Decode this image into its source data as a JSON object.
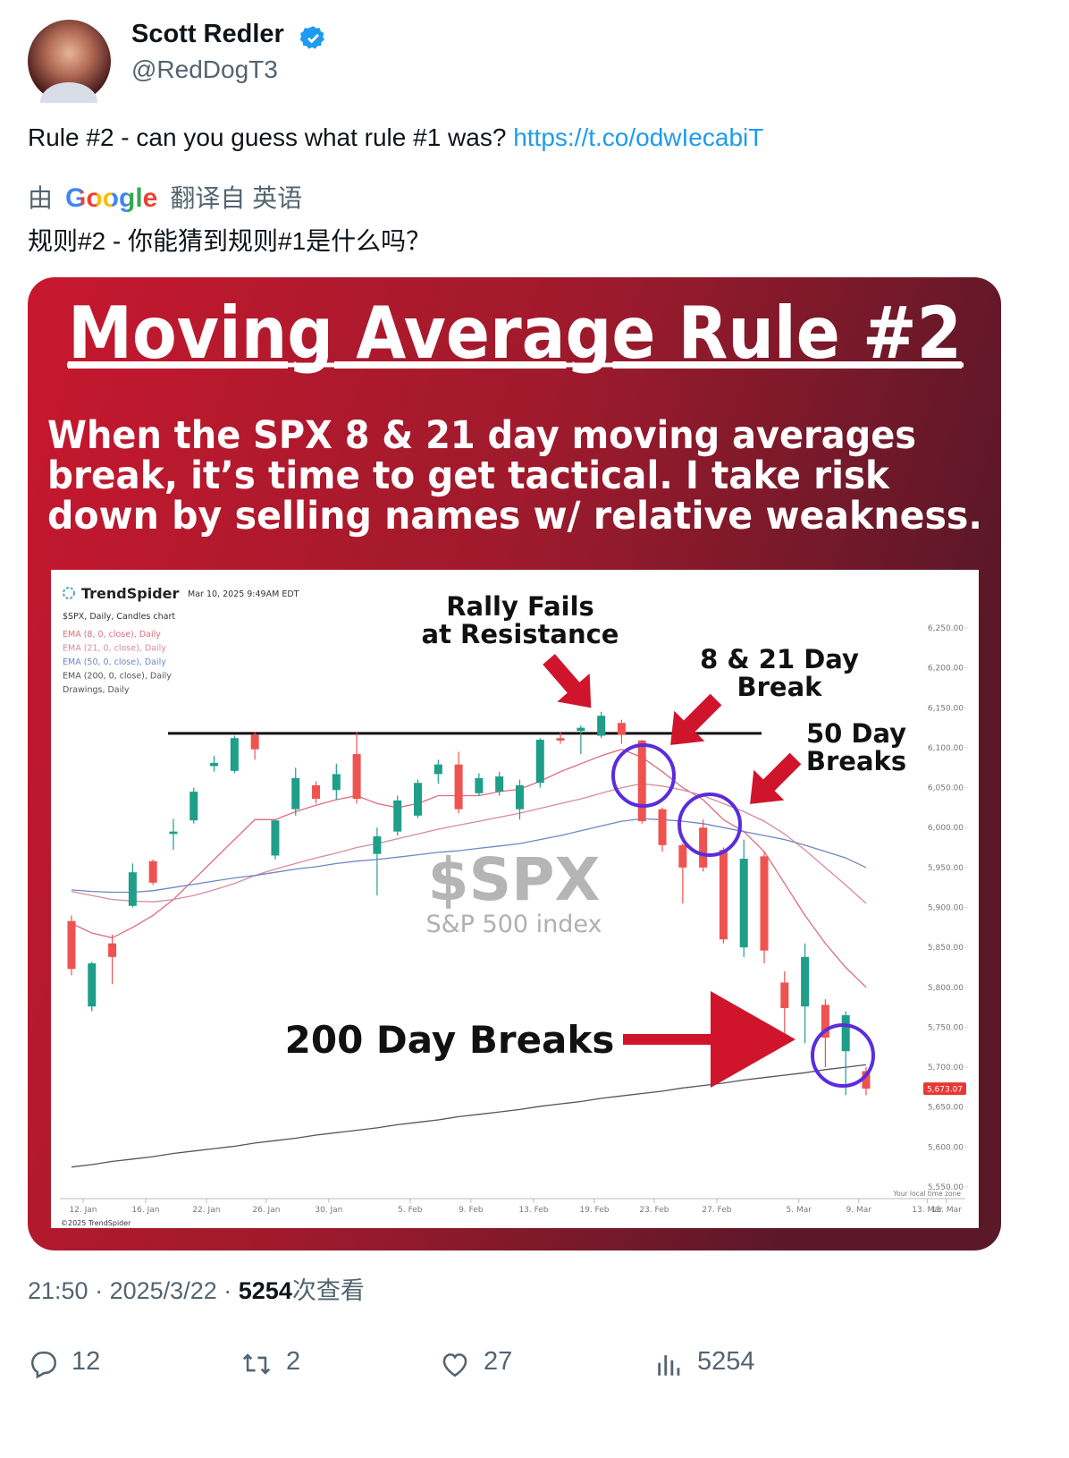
{
  "author": {
    "name": "Scott Redler",
    "handle": "@RedDogT3"
  },
  "tweet": {
    "text": "Rule #2 - can you guess what rule #1 was? ",
    "link": "https://t.co/odwIecabiT",
    "translation_prefix": "由",
    "translation_provider": "Google",
    "translation_suffix": "翻译自 英语",
    "translation": "规则#2 - 你能猜到规则#1是什么吗？"
  },
  "image": {
    "title": "Moving Average Rule #2",
    "subtitle": [
      "When the SPX 8 & 21 day moving averages",
      "break, it’s time to get tactical. I take risk",
      "down by selling names w/ relative weakness."
    ],
    "chart_data": {
      "type": "candlestick",
      "brand": "TrendSpider",
      "timestamp": "Mar 10, 2025 9:49AM EDT",
      "symbol_line": "$SPX, Daily, Candles chart",
      "drawings_label": "Drawings, Daily",
      "watermark": "$SPX",
      "watermark_subtitle": "S&P 500 index",
      "timezone_note": "Your local time zone",
      "copyright": "©2025 TrendSpider",
      "annotations": {
        "rally": [
          "Rally Fails",
          "at Resistance"
        ],
        "break_8_21": [
          "8 & 21 Day",
          "Break"
        ],
        "break_50": [
          "50 Day",
          "Breaks"
        ],
        "break_200": "200 Day Breaks"
      },
      "open": [
        5883,
        5776,
        5855,
        5902,
        5958,
        5992,
        6009,
        6077,
        6071,
        6116,
        5965,
        6023,
        6053,
        6047,
        6092,
        5967,
        5995,
        6015,
        6067,
        6079,
        6043,
        6045,
        6023,
        6056,
        6112,
        6121,
        6115,
        6131,
        6109,
        6023,
        5978,
        6000,
        5972,
        5850,
        5964,
        5806,
        5776,
        5778,
        5720,
        5695
      ],
      "high": [
        5890,
        5832,
        5866,
        5955,
        5960,
        6011,
        6050,
        6090,
        6115,
        6120,
        6010,
        6075,
        6058,
        6080,
        6120,
        6000,
        6040,
        6060,
        6085,
        6095,
        6068,
        6070,
        6060,
        6112,
        6120,
        6128,
        6145,
        6135,
        6110,
        6025,
        5980,
        6010,
        5975,
        5985,
        5970,
        5820,
        5855,
        5785,
        5770,
        5700
      ],
      "low": [
        5815,
        5770,
        5804,
        5900,
        5928,
        5972,
        6005,
        6070,
        6068,
        6085,
        5960,
        6015,
        6030,
        6035,
        6030,
        5915,
        5990,
        6012,
        6055,
        6018,
        6040,
        6040,
        6010,
        6050,
        6105,
        6092,
        6112,
        6105,
        6005,
        5970,
        5905,
        5945,
        5855,
        5838,
        5830,
        5730,
        5730,
        5700,
        5665,
        5665
      ],
      "close": [
        5823,
        5830,
        5838,
        5944,
        5931,
        5995,
        6045,
        6081,
        6112,
        6098,
        6009,
        6062,
        6036,
        6067,
        6036,
        5989,
        6034,
        6056,
        6079,
        6023,
        6062,
        6064,
        6053,
        6110,
        6109,
        6125,
        6140,
        6116,
        6008,
        5978,
        5950,
        5950,
        5860,
        5961,
        5846,
        5774,
        5838,
        5737,
        5765,
        5673.07
      ],
      "up_color": "#1f9e89",
      "down_color": "#ef5350",
      "series": [
        {
          "name": "EMA (8, 0, close), Daily",
          "color": "#e06c7c",
          "values": [
            5880,
            5868,
            5862,
            5875,
            5890,
            5910,
            5935,
            5960,
            5985,
            6010,
            6010,
            6020,
            6028,
            6035,
            6040,
            6030,
            6025,
            6030,
            6040,
            6040,
            6040,
            6045,
            6048,
            6058,
            6070,
            6080,
            6090,
            6098,
            6088,
            6070,
            6050,
            6035,
            6010,
            5995,
            5970,
            5930,
            5890,
            5855,
            5825,
            5800
          ]
        },
        {
          "name": "EMA (21, 0, close), Daily",
          "color": "#d88aa0",
          "values": [
            5920,
            5915,
            5910,
            5908,
            5907,
            5910,
            5915,
            5922,
            5930,
            5940,
            5948,
            5955,
            5962,
            5968,
            5975,
            5980,
            5986,
            5992,
            5998,
            6003,
            6008,
            6013,
            6018,
            6024,
            6030,
            6036,
            6043,
            6050,
            6055,
            6052,
            6047,
            6040,
            6030,
            6020,
            6008,
            5992,
            5972,
            5950,
            5928,
            5905
          ]
        },
        {
          "name": "EMA (50, 0, close), Daily",
          "color": "#6f86c4",
          "values": [
            5922,
            5920,
            5919,
            5919,
            5921,
            5925,
            5929,
            5933,
            5937,
            5940,
            5944,
            5948,
            5951,
            5955,
            5958,
            5960,
            5963,
            5966,
            5969,
            5971,
            5974,
            5977,
            5980,
            5985,
            5990,
            5996,
            6002,
            6008,
            6011,
            6010,
            6008,
            6005,
            6000,
            5995,
            5990,
            5985,
            5978,
            5970,
            5962,
            5950
          ]
        },
        {
          "name": "EMA (200, 0, close), Daily",
          "color": "#555555",
          "values": [
            5575,
            5578,
            5582,
            5585,
            5588,
            5592,
            5595,
            5598,
            5601,
            5605,
            5608,
            5611,
            5615,
            5618,
            5621,
            5624,
            5628,
            5631,
            5634,
            5638,
            5641,
            5644,
            5647,
            5651,
            5654,
            5657,
            5661,
            5664,
            5667,
            5670,
            5674,
            5677,
            5680,
            5684,
            5687,
            5690,
            5693,
            5697,
            5700,
            5703
          ]
        }
      ],
      "resistance": 6118,
      "last_price": {
        "value": 5673.07,
        "label": "5,673.07"
      },
      "ylim": [
        5550,
        6250
      ],
      "yticks": [
        {
          "value": 5550,
          "label": "5,550.00"
        },
        {
          "value": 5600,
          "label": "5,600.00"
        },
        {
          "value": 5650,
          "label": "5,650.00"
        },
        {
          "value": 5700,
          "label": "5,700.00"
        },
        {
          "value": 5750,
          "label": "5,750.00"
        },
        {
          "value": 5800,
          "label": "5,800.00"
        },
        {
          "value": 5850,
          "label": "5,850.00"
        },
        {
          "value": 5900,
          "label": "5,900.00"
        },
        {
          "value": 5950,
          "label": "5,950.00"
        },
        {
          "value": 6000,
          "label": "6,000.00"
        },
        {
          "value": 6050,
          "label": "6,050.00"
        },
        {
          "value": 6100,
          "label": "6,100.00"
        },
        {
          "value": 6150,
          "label": "6,150.00"
        },
        {
          "value": 6200,
          "label": "6,200.00"
        },
        {
          "value": 6250,
          "label": "6,250.00"
        }
      ],
      "xlim": [
        -0.57,
        43.3
      ],
      "xticks": [
        {
          "value": 0.57,
          "label": "12. Jan"
        },
        {
          "value": 3.64,
          "label": "16. Jan"
        },
        {
          "value": 6.62,
          "label": "22. Jan"
        },
        {
          "value": 9.56,
          "label": "26. Jan"
        },
        {
          "value": 12.63,
          "label": "30. Jan"
        },
        {
          "value": 16.62,
          "label": "5. Feb"
        },
        {
          "value": 19.6,
          "label": "9. Feb"
        },
        {
          "value": 22.68,
          "label": "13. Feb"
        },
        {
          "value": 25.66,
          "label": "19. Feb"
        },
        {
          "value": 28.6,
          "label": "23. Feb"
        },
        {
          "value": 31.67,
          "label": "27. Feb"
        },
        {
          "value": 35.7,
          "label": "5. Mar"
        },
        {
          "value": 38.64,
          "label": "9. Mar"
        },
        {
          "value": 42.0,
          "label": "13. Mar"
        },
        {
          "value": 42.94,
          "label": "15. Mar"
        }
      ]
    }
  },
  "meta": {
    "time": "21:50",
    "separator": "·",
    "date": "2025/3/22",
    "views": 5254,
    "views_suffix": "次查看"
  },
  "actions": {
    "replies": 12,
    "reposts": 2,
    "likes": 27,
    "views": 5254
  }
}
